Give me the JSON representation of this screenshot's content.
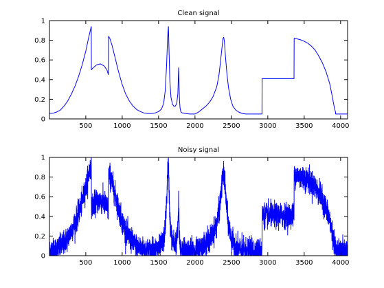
{
  "chart_data": [
    {
      "type": "line",
      "title": "Clean signal",
      "xlim": [
        1,
        4096
      ],
      "ylim": [
        0,
        1
      ],
      "xticks": [
        500,
        1000,
        1500,
        2000,
        2500,
        3000,
        3500,
        4000
      ],
      "xtick_labels": [
        "500",
        "1000",
        "1500",
        "2000",
        "2500",
        "3000",
        "3500",
        "4000"
      ],
      "yticks": [
        0,
        0.2,
        0.4,
        0.6,
        0.8,
        1
      ],
      "ytick_labels": [
        "0",
        "0.2",
        "0.4",
        "0.6",
        "0.8",
        "1"
      ],
      "grid": false,
      "series": [
        {
          "color": "#0000ff",
          "x": [
            1,
            50,
            100,
            150,
            200,
            250,
            300,
            350,
            400,
            450,
            500,
            540,
            575,
            577,
            600,
            650,
            700,
            750,
            790,
            810,
            812,
            830,
            860,
            900,
            950,
            1000,
            1050,
            1100,
            1150,
            1200,
            1250,
            1300,
            1350,
            1400,
            1450,
            1500,
            1540,
            1570,
            1590,
            1610,
            1625,
            1635,
            1645,
            1655,
            1670,
            1690,
            1710,
            1730,
            1750,
            1765,
            1775,
            1783,
            1788,
            1795,
            1805,
            1815,
            1830,
            1850,
            1870,
            1900,
            1930,
            1960,
            1990,
            2000,
            2050,
            2100,
            2150,
            2200,
            2250,
            2300,
            2330,
            2350,
            2370,
            2385,
            2395,
            2405,
            2420,
            2440,
            2460,
            2490,
            2520,
            2560,
            2600,
            2650,
            2700,
            2750,
            2800,
            2850,
            2900,
            2920,
            2922,
            2950,
            3000,
            3100,
            3200,
            3300,
            3360,
            3362,
            3400,
            3450,
            3500,
            3550,
            3600,
            3650,
            3700,
            3750,
            3800,
            3850,
            3880,
            3900,
            3915,
            3930,
            3932,
            3960,
            4000,
            4050,
            4096
          ],
          "y": [
            0.055,
            0.058,
            0.07,
            0.09,
            0.13,
            0.18,
            0.25,
            0.33,
            0.43,
            0.55,
            0.69,
            0.83,
            0.94,
            0.5,
            0.52,
            0.55,
            0.56,
            0.54,
            0.5,
            0.45,
            0.84,
            0.82,
            0.75,
            0.63,
            0.48,
            0.35,
            0.25,
            0.18,
            0.13,
            0.095,
            0.075,
            0.06,
            0.055,
            0.055,
            0.06,
            0.075,
            0.1,
            0.16,
            0.28,
            0.55,
            0.85,
            0.94,
            0.65,
            0.38,
            0.22,
            0.15,
            0.13,
            0.13,
            0.16,
            0.26,
            0.52,
            0.3,
            0.18,
            0.11,
            0.075,
            0.065,
            0.06,
            0.058,
            0.055,
            0.052,
            0.05,
            0.05,
            0.05,
            0.05,
            0.07,
            0.1,
            0.13,
            0.17,
            0.23,
            0.33,
            0.45,
            0.58,
            0.72,
            0.82,
            0.83,
            0.78,
            0.62,
            0.45,
            0.32,
            0.2,
            0.13,
            0.09,
            0.07,
            0.055,
            0.05,
            0.05,
            0.05,
            0.05,
            0.05,
            0.05,
            0.41,
            0.41,
            0.41,
            0.41,
            0.41,
            0.41,
            0.41,
            0.82,
            0.815,
            0.805,
            0.79,
            0.77,
            0.74,
            0.7,
            0.64,
            0.57,
            0.48,
            0.36,
            0.25,
            0.17,
            0.11,
            0.07,
            0.05,
            0.05,
            0.05,
            0.05,
            0.05
          ]
        }
      ]
    },
    {
      "type": "line",
      "title": "Noisy signal",
      "xlim": [
        1,
        4096
      ],
      "ylim": [
        0,
        1
      ],
      "xticks": [
        500,
        1000,
        1500,
        2000,
        2500,
        3000,
        3500,
        4000
      ],
      "xtick_labels": [
        "500",
        "1000",
        "1500",
        "2000",
        "2500",
        "3000",
        "3500",
        "4000"
      ],
      "yticks": [
        0,
        0.2,
        0.4,
        0.6,
        0.8,
        1
      ],
      "ytick_labels": [
        "0",
        "0.2",
        "0.4",
        "0.6",
        "0.8",
        "1"
      ],
      "grid": false,
      "noise_amplitude": 0.06,
      "series": [
        {
          "color": "#0000ff",
          "x": [
            1,
            50,
            100,
            150,
            200,
            250,
            300,
            350,
            400,
            450,
            500,
            540,
            575,
            577,
            600,
            650,
            700,
            750,
            790,
            810,
            812,
            830,
            860,
            900,
            950,
            1000,
            1050,
            1100,
            1150,
            1200,
            1250,
            1300,
            1350,
            1400,
            1450,
            1500,
            1540,
            1570,
            1590,
            1610,
            1625,
            1635,
            1645,
            1655,
            1670,
            1690,
            1710,
            1730,
            1750,
            1765,
            1775,
            1783,
            1788,
            1795,
            1805,
            1815,
            1830,
            1850,
            1870,
            1900,
            1930,
            1960,
            1990,
            2000,
            2050,
            2100,
            2150,
            2200,
            2250,
            2300,
            2330,
            2350,
            2370,
            2385,
            2395,
            2405,
            2420,
            2440,
            2460,
            2490,
            2520,
            2560,
            2600,
            2650,
            2700,
            2750,
            2800,
            2850,
            2900,
            2920,
            2922,
            2950,
            3000,
            3100,
            3200,
            3300,
            3360,
            3362,
            3400,
            3450,
            3500,
            3550,
            3600,
            3650,
            3700,
            3750,
            3800,
            3850,
            3880,
            3900,
            3915,
            3930,
            3932,
            3960,
            4000,
            4050,
            4096
          ],
          "y": [
            0.055,
            0.058,
            0.07,
            0.09,
            0.13,
            0.18,
            0.25,
            0.33,
            0.43,
            0.55,
            0.69,
            0.83,
            0.94,
            0.5,
            0.52,
            0.55,
            0.56,
            0.54,
            0.5,
            0.45,
            0.84,
            0.82,
            0.75,
            0.63,
            0.48,
            0.35,
            0.25,
            0.18,
            0.13,
            0.095,
            0.075,
            0.06,
            0.055,
            0.055,
            0.06,
            0.075,
            0.1,
            0.16,
            0.28,
            0.55,
            0.85,
            0.94,
            0.65,
            0.38,
            0.22,
            0.15,
            0.13,
            0.13,
            0.16,
            0.26,
            0.52,
            0.3,
            0.18,
            0.11,
            0.075,
            0.065,
            0.06,
            0.058,
            0.055,
            0.052,
            0.05,
            0.05,
            0.05,
            0.05,
            0.07,
            0.1,
            0.13,
            0.17,
            0.23,
            0.33,
            0.45,
            0.58,
            0.72,
            0.82,
            0.83,
            0.78,
            0.62,
            0.45,
            0.32,
            0.2,
            0.13,
            0.09,
            0.07,
            0.055,
            0.05,
            0.05,
            0.05,
            0.05,
            0.05,
            0.05,
            0.41,
            0.41,
            0.41,
            0.41,
            0.41,
            0.41,
            0.41,
            0.82,
            0.815,
            0.805,
            0.79,
            0.77,
            0.74,
            0.7,
            0.64,
            0.57,
            0.48,
            0.36,
            0.25,
            0.17,
            0.11,
            0.07,
            0.05,
            0.05,
            0.05,
            0.05,
            0.05
          ]
        }
      ]
    }
  ]
}
